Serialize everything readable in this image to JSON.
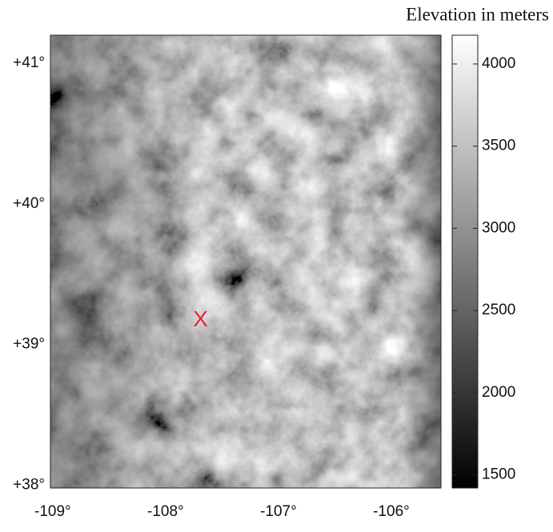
{
  "chart_data": {
    "type": "map",
    "xlim": [
      -109.02,
      -105.56
    ],
    "ylim": [
      37.98,
      41.2
    ],
    "xticks": [
      {
        "value": -109,
        "label": "-109°"
      },
      {
        "value": -108,
        "label": "-108°"
      },
      {
        "value": -107,
        "label": "-107°"
      },
      {
        "value": -106,
        "label": "-106°"
      }
    ],
    "yticks": [
      {
        "value": 38,
        "label": "+38°"
      },
      {
        "value": 39,
        "label": "+39°"
      },
      {
        "value": 40,
        "label": "+40°"
      },
      {
        "value": 41,
        "label": "+41°"
      }
    ],
    "grid": true,
    "colorbar": {
      "label": "Elevation in meters",
      "lim": [
        1420,
        4175
      ],
      "ticks": [
        1500,
        2000,
        2500,
        3000,
        3500,
        4000
      ]
    },
    "marker": {
      "label": "X",
      "x": -107.69,
      "y": 39.17,
      "color": "#e8262d"
    }
  }
}
